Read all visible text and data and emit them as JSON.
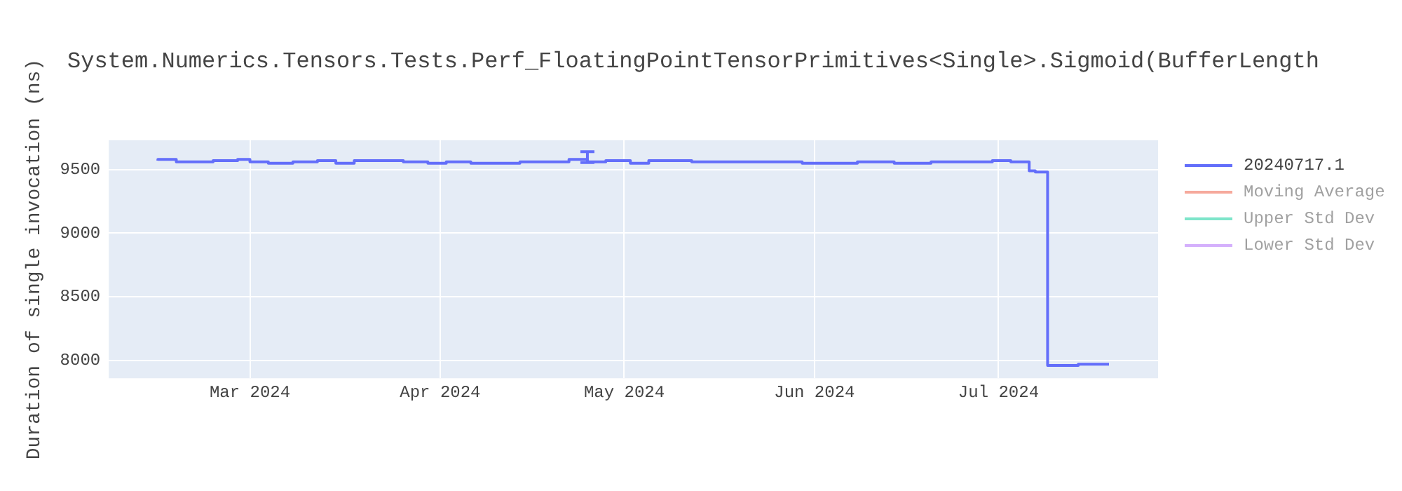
{
  "chart_data": {
    "type": "step",
    "title": "System.Numerics.Tensors.Tests.Perf_FloatingPointTensorPrimitives<Single>.Sigmoid(BufferLength",
    "ylabel": "Duration of single invocation (ns)",
    "x": [
      "2024-02-15",
      "2024-02-18",
      "2024-02-20",
      "2024-02-24",
      "2024-02-28",
      "2024-03-01",
      "2024-03-04",
      "2024-03-08",
      "2024-03-12",
      "2024-03-15",
      "2024-03-18",
      "2024-03-22",
      "2024-03-26",
      "2024-03-30",
      "2024-04-02",
      "2024-04-06",
      "2024-04-10",
      "2024-04-14",
      "2024-04-18",
      "2024-04-22",
      "2024-04-25",
      "2024-04-28",
      "2024-05-02",
      "2024-05-05",
      "2024-05-08",
      "2024-05-12",
      "2024-05-16",
      "2024-05-20",
      "2024-05-25",
      "2024-05-30",
      "2024-06-03",
      "2024-06-08",
      "2024-06-14",
      "2024-06-20",
      "2024-06-25",
      "2024-06-30",
      "2024-07-03",
      "2024-07-06",
      "2024-07-07",
      "2024-07-09",
      "2024-07-10",
      "2024-07-14",
      "2024-07-19"
    ],
    "series": [
      {
        "name": "20240717.1",
        "color": "#636efa",
        "values": [
          9570,
          9580,
          9560,
          9560,
          9570,
          9580,
          9560,
          9550,
          9560,
          9570,
          9550,
          9570,
          9570,
          9560,
          9550,
          9560,
          9550,
          9550,
          9560,
          9560,
          9580,
          9560,
          9570,
          9550,
          9570,
          9570,
          9560,
          9560,
          9560,
          9560,
          9550,
          9550,
          9560,
          9550,
          9560,
          9560,
          9570,
          9560,
          9490,
          9480,
          7960,
          7960,
          7970
        ],
        "errors": [
          null,
          null,
          null,
          null,
          null,
          null,
          null,
          null,
          null,
          null,
          null,
          null,
          null,
          null,
          null,
          null,
          null,
          null,
          null,
          null,
          [
            9555,
            9640
          ],
          null,
          null,
          null,
          null,
          null,
          null,
          null,
          null,
          null,
          null,
          null,
          null,
          null,
          null,
          null,
          null,
          null,
          null,
          null,
          null,
          null,
          null
        ]
      },
      {
        "name": "Moving Average",
        "color": "#ef553b",
        "values": [
          null,
          null,
          null,
          null,
          null,
          null,
          null,
          null,
          null,
          null,
          null,
          null,
          null,
          null,
          null,
          null,
          null,
          null,
          null,
          null,
          null,
          null,
          null,
          null,
          null,
          null,
          null,
          null,
          null,
          null,
          null,
          null,
          null,
          null,
          null,
          null,
          null,
          null,
          null,
          null,
          null,
          null,
          null
        ]
      },
      {
        "name": "Upper Std Dev",
        "color": "#00cc96",
        "values": [
          null,
          null,
          null,
          null,
          null,
          null,
          null,
          null,
          null,
          null,
          null,
          null,
          null,
          null,
          null,
          null,
          null,
          null,
          null,
          null,
          null,
          null,
          null,
          null,
          null,
          null,
          null,
          null,
          null,
          null,
          null,
          null,
          null,
          null,
          null,
          null,
          null,
          null,
          null,
          null,
          null,
          null,
          null
        ]
      },
      {
        "name": "Lower Std Dev",
        "color": "#ab63fa",
        "values": [
          null,
          null,
          null,
          null,
          null,
          null,
          null,
          null,
          null,
          null,
          null,
          null,
          null,
          null,
          null,
          null,
          null,
          null,
          null,
          null,
          null,
          null,
          null,
          null,
          null,
          null,
          null,
          null,
          null,
          null,
          null,
          null,
          null,
          null,
          null,
          null,
          null,
          null,
          null,
          null,
          null,
          null,
          null
        ]
      }
    ],
    "xlim": [
      "2024-02-07",
      "2024-07-27"
    ],
    "xticks": [
      {
        "value": "2024-03-01",
        "label": "Mar 2024"
      },
      {
        "value": "2024-04-01",
        "label": "Apr 2024"
      },
      {
        "value": "2024-05-01",
        "label": "May 2024"
      },
      {
        "value": "2024-06-01",
        "label": "Jun 2024"
      },
      {
        "value": "2024-07-01",
        "label": "Jul 2024"
      }
    ],
    "ylim": [
      7860,
      9730
    ],
    "yticks": [
      8000,
      8500,
      9000,
      9500
    ],
    "grid": true,
    "legend": "right",
    "line_style": "solid",
    "marker": "none"
  }
}
